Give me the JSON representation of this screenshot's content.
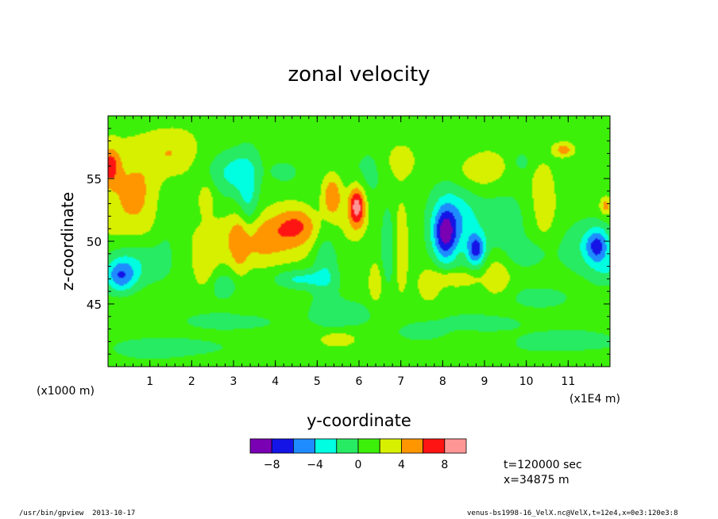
{
  "chart_data": {
    "type": "heatmap",
    "title": "zonal velocity",
    "xlabel": "y-coordinate",
    "ylabel": "z-coordinate",
    "x_scale_note": "(x1E4 m)",
    "y_scale_note": "(x1000 m)",
    "xlim": [
      0,
      12
    ],
    "ylim": [
      40,
      60
    ],
    "x_ticks": [
      1,
      2,
      3,
      4,
      5,
      6,
      7,
      8,
      9,
      10,
      11
    ],
    "y_ticks": [
      45,
      50,
      55
    ],
    "colorbar": {
      "levels": [
        -10,
        -8,
        -6,
        -4,
        -2,
        0,
        2,
        4,
        6,
        8,
        10
      ],
      "tick_labels": [
        "-8",
        "-4",
        "0",
        "4",
        "8"
      ],
      "colors": [
        "#7a00b4",
        "#1414e6",
        "#1e8cff",
        "#00ffe0",
        "#28eb64",
        "#3cf00a",
        "#d7f000",
        "#ff9600",
        "#ff1414",
        "#ff9696"
      ]
    },
    "field_pattern": [
      {
        "y": 0.3,
        "z": 47.2,
        "u": -5.5,
        "sy": 0.25,
        "sz": 0.9
      },
      {
        "y": 0.6,
        "z": 48.2,
        "u": -3.5,
        "sy": 0.5,
        "sz": 1.4
      },
      {
        "y": 0.6,
        "z": 53.5,
        "u": 3.2,
        "sy": 0.6,
        "sz": 3.5
      },
      {
        "y": 0.05,
        "z": 56.0,
        "u": 5.0,
        "sy": 0.15,
        "sz": 1.0
      },
      {
        "y": 1.5,
        "z": 57.0,
        "u": 2.8,
        "sy": 0.4,
        "sz": 1.3
      },
      {
        "y": 1.4,
        "z": 52.0,
        "u": -1.8,
        "sy": 0.25,
        "sz": 3.0
      },
      {
        "y": 2.3,
        "z": 47.8,
        "u": 2.4,
        "sy": 0.18,
        "sz": 1.4
      },
      {
        "y": 2.35,
        "z": 53.5,
        "u": 2.5,
        "sy": 0.15,
        "sz": 1.0
      },
      {
        "y": 3.0,
        "z": 55.5,
        "u": -3.5,
        "sy": 0.4,
        "sz": 1.2
      },
      {
        "y": 3.3,
        "z": 53.3,
        "u": -4.2,
        "sy": 0.2,
        "sz": 2.2
      },
      {
        "y": 3.15,
        "z": 50.5,
        "u": 2.6,
        "sy": 0.15,
        "sz": 2.8
      },
      {
        "y": 4.0,
        "z": 50.8,
        "u": 3.5,
        "sy": 1.0,
        "sz": 1.1
      },
      {
        "y": 3.6,
        "z": 49.2,
        "u": 2.6,
        "sy": 0.7,
        "sz": 1.1
      },
      {
        "y": 4.5,
        "z": 51.6,
        "u": 2.8,
        "sy": 0.35,
        "sz": 1.0
      },
      {
        "y": 4.2,
        "z": 55.5,
        "u": -2.8,
        "sy": 0.2,
        "sz": 0.5
      },
      {
        "y": 4.6,
        "z": 47.0,
        "u": -3.5,
        "sy": 0.45,
        "sz": 0.55
      },
      {
        "y": 5.2,
        "z": 49.0,
        "u": -3.2,
        "sy": 0.22,
        "sz": 2.6
      },
      {
        "y": 5.35,
        "z": 53.5,
        "u": 5.8,
        "sy": 0.18,
        "sz": 1.2
      },
      {
        "y": 5.95,
        "z": 52.8,
        "u": 8.5,
        "sy": 0.15,
        "sz": 1.2
      },
      {
        "y": 6.2,
        "z": 55.0,
        "u": -1.8,
        "sy": 0.3,
        "sz": 1.6
      },
      {
        "y": 5.7,
        "z": 44.2,
        "u": -2.0,
        "sy": 0.6,
        "sz": 0.8
      },
      {
        "y": 6.4,
        "z": 46.8,
        "u": 2.5,
        "sy": 0.12,
        "sz": 1.2
      },
      {
        "y": 6.7,
        "z": 49.5,
        "u": -2.8,
        "sy": 0.12,
        "sz": 2.4
      },
      {
        "y": 5.5,
        "z": 42.2,
        "u": 2.6,
        "sy": 0.3,
        "sz": 0.4
      },
      {
        "y": 7.0,
        "z": 49.5,
        "u": 2.5,
        "sy": 0.15,
        "sz": 2.4
      },
      {
        "y": 7.0,
        "z": 56.5,
        "u": 2.5,
        "sy": 0.25,
        "sz": 1.0
      },
      {
        "y": 7.5,
        "z": 42.8,
        "u": -2.5,
        "sy": 0.4,
        "sz": 0.5
      },
      {
        "y": 8.05,
        "z": 50.5,
        "u": -7.5,
        "sy": 0.2,
        "sz": 1.5
      },
      {
        "y": 8.3,
        "z": 51.5,
        "u": -4.5,
        "sy": 0.4,
        "sz": 2.0
      },
      {
        "y": 8.8,
        "z": 49.3,
        "u": -7.2,
        "sy": 0.15,
        "sz": 0.9
      },
      {
        "y": 8.3,
        "z": 47.0,
        "u": 3.5,
        "sy": 0.35,
        "sz": 0.45
      },
      {
        "y": 7.7,
        "z": 46.5,
        "u": 2.5,
        "sy": 0.2,
        "sz": 1.0
      },
      {
        "y": 8.5,
        "z": 57.5,
        "u": -2.0,
        "sy": 0.5,
        "sz": 1.0
      },
      {
        "y": 8.9,
        "z": 56.0,
        "u": 3.2,
        "sy": 0.45,
        "sz": 1.4
      },
      {
        "y": 9.3,
        "z": 47.3,
        "u": 2.5,
        "sy": 0.25,
        "sz": 1.2
      },
      {
        "y": 9.5,
        "z": 52.0,
        "u": -2.2,
        "sy": 0.5,
        "sz": 2.0
      },
      {
        "y": 9.9,
        "z": 56.3,
        "u": -2.4,
        "sy": 0.12,
        "sz": 0.5
      },
      {
        "y": 10.2,
        "z": 45.5,
        "u": -2.2,
        "sy": 0.5,
        "sz": 0.7
      },
      {
        "y": 10.4,
        "z": 52.5,
        "u": 2.2,
        "sy": 0.3,
        "sz": 3.0
      },
      {
        "y": 10.1,
        "z": 49.0,
        "u": -2.2,
        "sy": 0.35,
        "sz": 0.8
      },
      {
        "y": 10.9,
        "z": 57.3,
        "u": 4.0,
        "sy": 0.15,
        "sz": 0.35
      },
      {
        "y": 11.3,
        "z": 49.5,
        "u": -2.6,
        "sy": 0.5,
        "sz": 1.5
      },
      {
        "y": 11.7,
        "z": 49.6,
        "u": -6.5,
        "sy": 0.2,
        "sz": 1.0
      },
      {
        "y": 11.9,
        "z": 52.8,
        "u": 4.0,
        "sy": 0.1,
        "sz": 0.5
      },
      {
        "y": 11.0,
        "z": 42.0,
        "u": -2.2,
        "sy": 0.9,
        "sz": 0.7
      },
      {
        "y": 1.5,
        "z": 41.5,
        "u": -2.4,
        "sy": 1.0,
        "sz": 0.6
      },
      {
        "y": 3.0,
        "z": 43.6,
        "u": -2.2,
        "sy": 0.8,
        "sz": 0.5
      },
      {
        "y": 9.0,
        "z": 43.5,
        "u": -2.2,
        "sy": 0.7,
        "sz": 0.5
      },
      {
        "y": 2.8,
        "z": 46.5,
        "u": -2.3,
        "sy": 0.3,
        "sz": 0.8
      },
      {
        "y": 12.0,
        "z": 47.5,
        "u": -2.2,
        "sy": 0.3,
        "sz": 0.8
      }
    ]
  },
  "info": {
    "time": "t=120000 sec",
    "position": "x=34875 m"
  },
  "footer": {
    "left": "/usr/bin/gpview  2013-10-17",
    "right": "venus-bs1998-16_VelX.nc@VelX,t=12e4,x=0e3:120e3:8"
  }
}
